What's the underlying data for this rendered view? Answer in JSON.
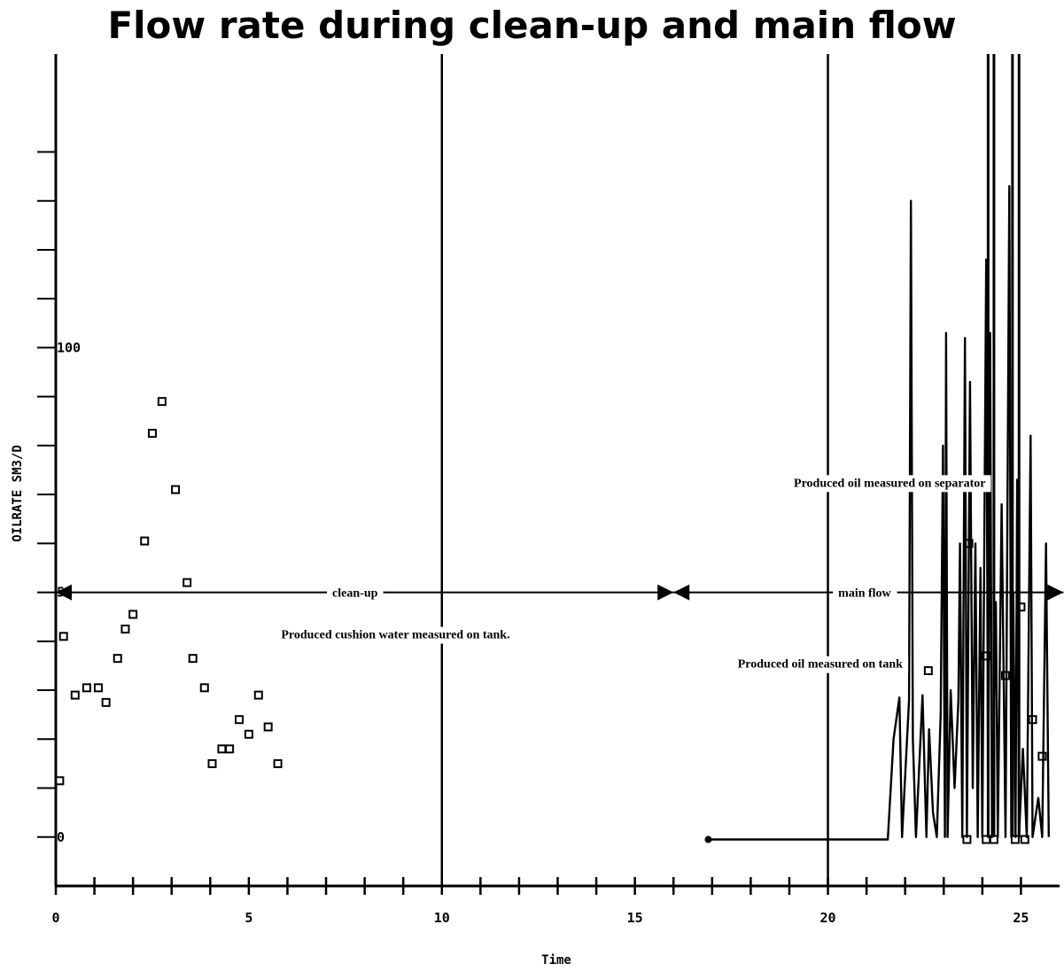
{
  "chart_data": {
    "type": "line",
    "title": "Flow rate during clean-up and main flow",
    "xlabel": "Time",
    "ylabel": "OILRATE SM3/D",
    "xlim": [
      0,
      26
    ],
    "ylim": [
      -10,
      160
    ],
    "x_tick_labels": [
      {
        "value": 0,
        "label": "0"
      },
      {
        "value": 5,
        "label": "5"
      },
      {
        "value": 10,
        "label": "10"
      },
      {
        "value": 15,
        "label": "15"
      },
      {
        "value": 20,
        "label": "20"
      },
      {
        "value": 25,
        "label": "25"
      }
    ],
    "x_minor_ticks": [
      1,
      2,
      3,
      4,
      6,
      7,
      8,
      9,
      11,
      12,
      13,
      14,
      16,
      17,
      18,
      19,
      21,
      22,
      23,
      24
    ],
    "y_tick_labels": [
      {
        "value": 0,
        "label": "0"
      },
      {
        "value": 50,
        "label": "50"
      },
      {
        "value": 100,
        "label": "100"
      }
    ],
    "y_minor_ticks": [
      10,
      20,
      30,
      40,
      60,
      70,
      80,
      90,
      110,
      120,
      130,
      140
    ],
    "vertical_lines": [
      10,
      20
    ],
    "series": [
      {
        "label": "Produced cushion water measured on tank.",
        "marker": "square",
        "points": [
          [
            0.1,
            11.5
          ],
          [
            0.2,
            41
          ],
          [
            0.5,
            29
          ],
          [
            0.8,
            30.5
          ],
          [
            1.1,
            30.5
          ],
          [
            1.3,
            27.5
          ],
          [
            1.6,
            36.5
          ],
          [
            1.8,
            42.5
          ],
          [
            2.0,
            45.5
          ],
          [
            2.3,
            60.5
          ],
          [
            2.5,
            82.5
          ],
          [
            2.75,
            89
          ],
          [
            3.1,
            71
          ],
          [
            3.4,
            52
          ],
          [
            3.55,
            36.5
          ],
          [
            3.85,
            30.5
          ],
          [
            4.05,
            15
          ],
          [
            4.3,
            18
          ],
          [
            4.5,
            18
          ],
          [
            4.75,
            24
          ],
          [
            5.0,
            21
          ],
          [
            5.25,
            29
          ],
          [
            5.5,
            22.5
          ],
          [
            5.75,
            15
          ]
        ]
      },
      {
        "label": "Produced oil measured on tank",
        "marker": "square",
        "points": [
          [
            22.6,
            34
          ],
          [
            23.65,
            60
          ],
          [
            24.1,
            37
          ],
          [
            24.6,
            33
          ],
          [
            25.0,
            47
          ],
          [
            25.3,
            24
          ],
          [
            25.55,
            16.5
          ],
          [
            23.6,
            -0.5
          ],
          [
            24.1,
            -0.5
          ],
          [
            24.3,
            -0.5
          ],
          [
            24.85,
            -0.5
          ],
          [
            25.1,
            -0.5
          ]
        ]
      },
      {
        "label": "Produced oil measured on separator",
        "marker": "none",
        "points": [
          [
            16.9,
            -0.5
          ],
          [
            21.55,
            -0.5
          ],
          [
            21.7,
            20
          ],
          [
            21.85,
            28.5
          ],
          [
            21.92,
            0
          ],
          [
            22.1,
            28
          ],
          [
            22.15,
            130
          ],
          [
            22.2,
            20
          ],
          [
            22.28,
            0
          ],
          [
            22.45,
            29
          ],
          [
            22.55,
            0
          ],
          [
            22.62,
            22
          ],
          [
            22.72,
            5
          ],
          [
            22.82,
            0
          ],
          [
            22.92,
            25
          ],
          [
            22.98,
            80
          ],
          [
            23.03,
            0
          ],
          [
            23.06,
            103
          ],
          [
            23.1,
            0
          ],
          [
            23.18,
            30
          ],
          [
            23.28,
            10
          ],
          [
            23.38,
            28
          ],
          [
            23.42,
            60
          ],
          [
            23.48,
            0
          ],
          [
            23.55,
            102
          ],
          [
            23.6,
            0
          ],
          [
            23.68,
            93
          ],
          [
            23.75,
            10
          ],
          [
            23.82,
            60
          ],
          [
            23.88,
            0
          ],
          [
            23.95,
            55
          ],
          [
            24.0,
            0
          ],
          [
            24.1,
            118
          ],
          [
            24.15,
            0
          ],
          [
            24.2,
            103
          ],
          [
            24.25,
            0
          ],
          [
            24.35,
            48
          ],
          [
            24.4,
            0
          ],
          [
            24.5,
            68
          ],
          [
            24.6,
            0
          ],
          [
            24.7,
            133
          ],
          [
            24.75,
            0
          ],
          [
            24.8,
            50
          ],
          [
            24.86,
            0
          ],
          [
            24.9,
            73
          ],
          [
            24.95,
            0
          ],
          [
            25.05,
            18
          ],
          [
            25.15,
            0
          ],
          [
            25.25,
            82
          ],
          [
            25.3,
            0
          ],
          [
            25.45,
            8
          ],
          [
            25.55,
            0
          ],
          [
            25.65,
            60
          ],
          [
            25.72,
            0
          ]
        ]
      }
    ],
    "clipped_spikes_x": [
      24.15,
      24.3,
      24.78,
      24.95
    ],
    "annotations": [
      {
        "text": "clean-up",
        "x": 7.75,
        "y": 50
      },
      {
        "text": "main flow",
        "x": 20.95,
        "y": 50
      },
      {
        "text": "Produced cushion water measured on tank.",
        "x": 8.8,
        "y": 41.5
      },
      {
        "text": "Produced oil measured on separator",
        "x": 21.6,
        "y": 72.5
      },
      {
        "text": "Produced oil measured on tank",
        "x": 19.8,
        "y": 35.5
      }
    ],
    "phase_arrows": [
      {
        "name": "clean-up",
        "from": 0,
        "to": 16.0,
        "y": 50
      },
      {
        "name": "main flow",
        "from": 16.0,
        "to": 26.1,
        "y": 50
      }
    ]
  }
}
